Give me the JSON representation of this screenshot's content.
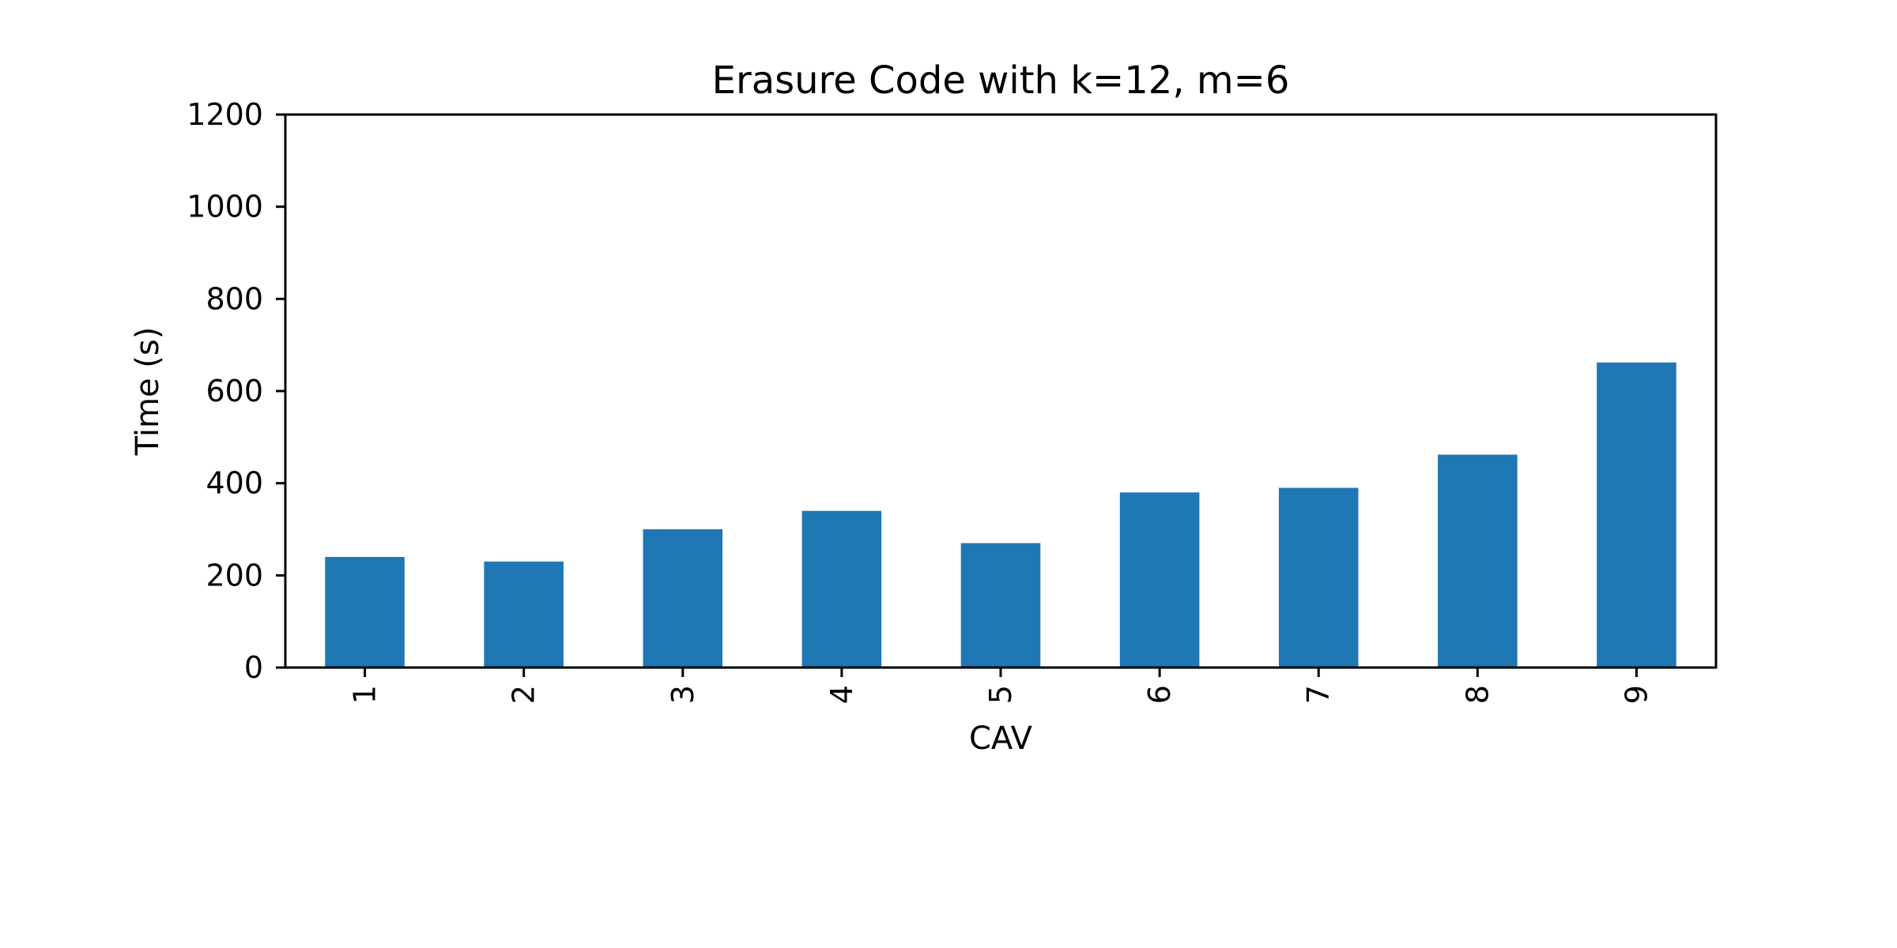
{
  "chart_data": {
    "type": "bar",
    "title": "Erasure Code with k=12, m=6",
    "xlabel": "CAV",
    "ylabel": "Time (s)",
    "categories": [
      "1",
      "2",
      "3",
      "4",
      "5",
      "6",
      "7",
      "8",
      "9"
    ],
    "values": [
      240,
      230,
      300,
      340,
      270,
      380,
      390,
      462,
      662
    ],
    "ylim": [
      0,
      1200
    ],
    "yticks": [
      0,
      200,
      400,
      600,
      800,
      1000,
      1200
    ],
    "grid": false,
    "legend": false,
    "bar_color": "#1f77b4"
  }
}
